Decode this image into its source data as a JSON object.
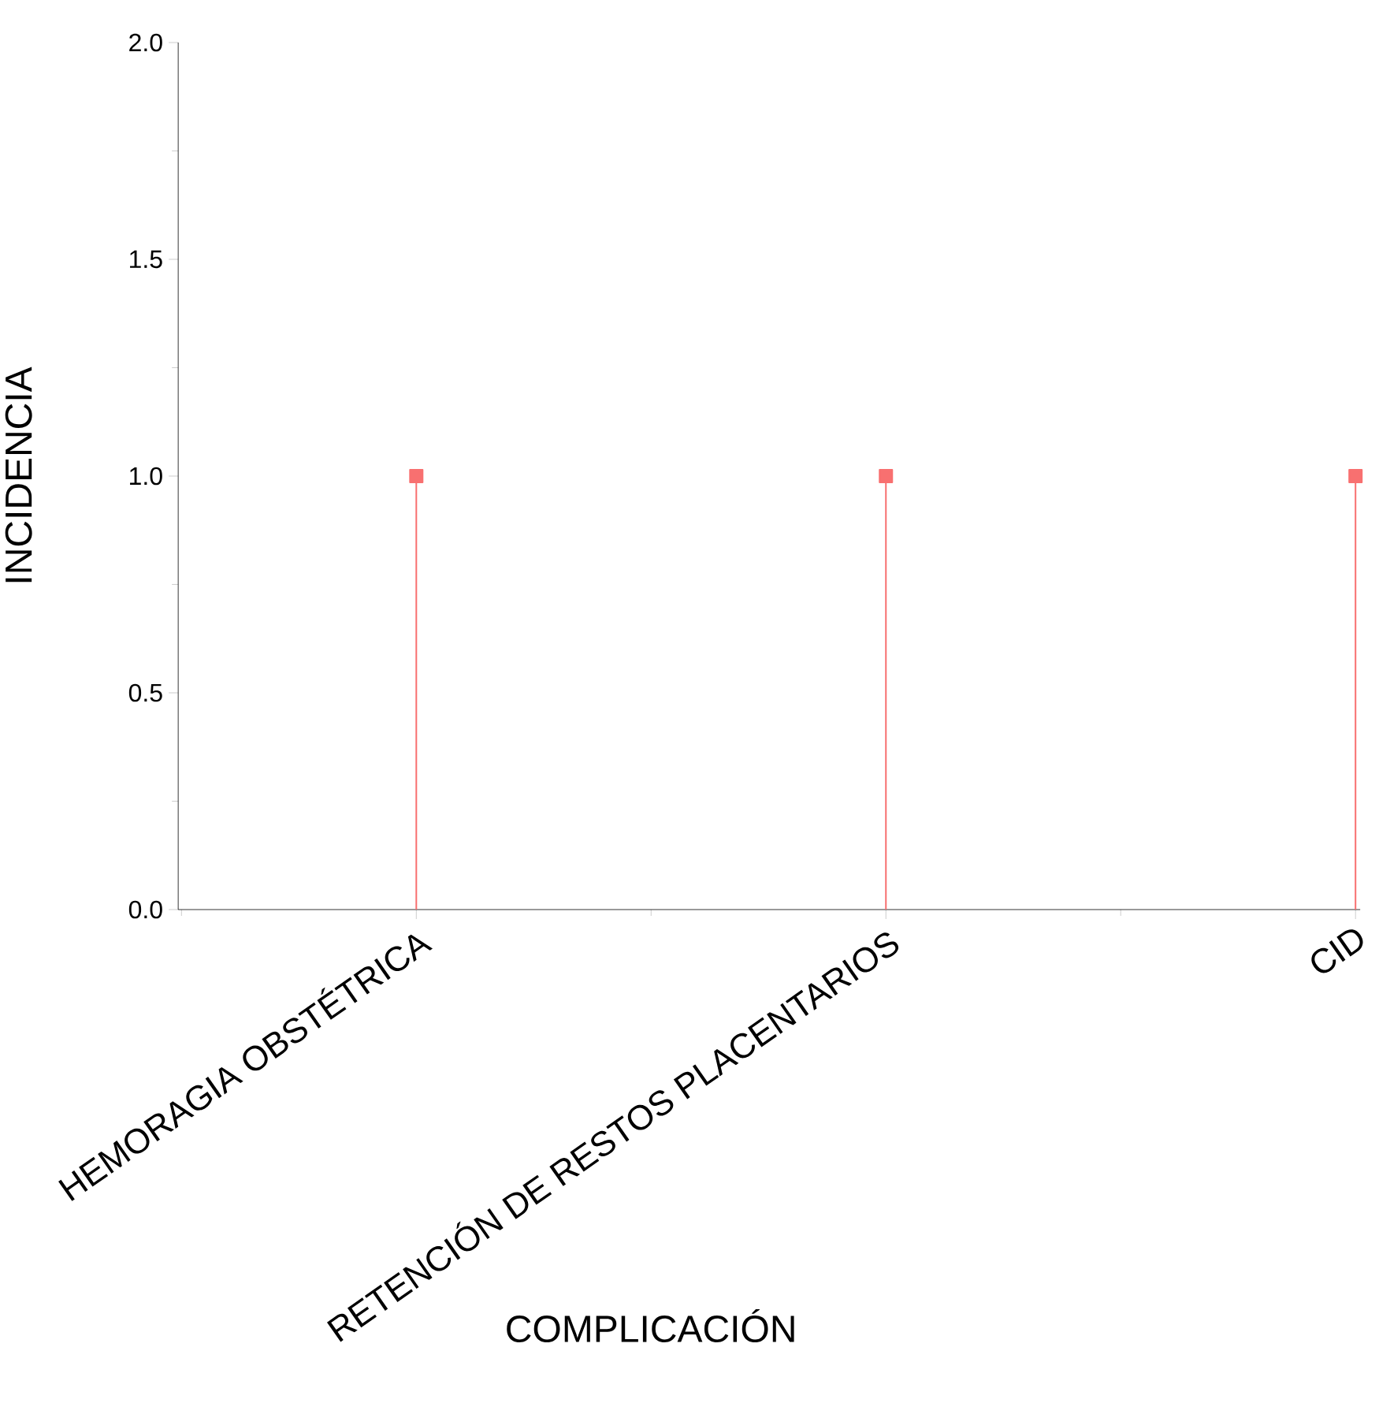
{
  "chart_data": {
    "type": "lollipop",
    "xlabel": "COMPLICACIÓN",
    "ylabel": "INCIDENCIA",
    "categories": [
      "HEMORAGIA OBSTÉTRICA",
      "RETENCIÓN DE RESTOS PLACENTARIOS",
      "CID"
    ],
    "values": [
      1,
      1,
      1
    ],
    "color": "#f87070",
    "marker": "square",
    "ylim": [
      0,
      2
    ],
    "yticks": [
      {
        "value": 0,
        "label": "0.0"
      },
      0.5,
      {
        "value": 1,
        "label": "1.0"
      },
      1.5,
      {
        "value": 2,
        "label": "2.0"
      }
    ],
    "grid": false
  }
}
